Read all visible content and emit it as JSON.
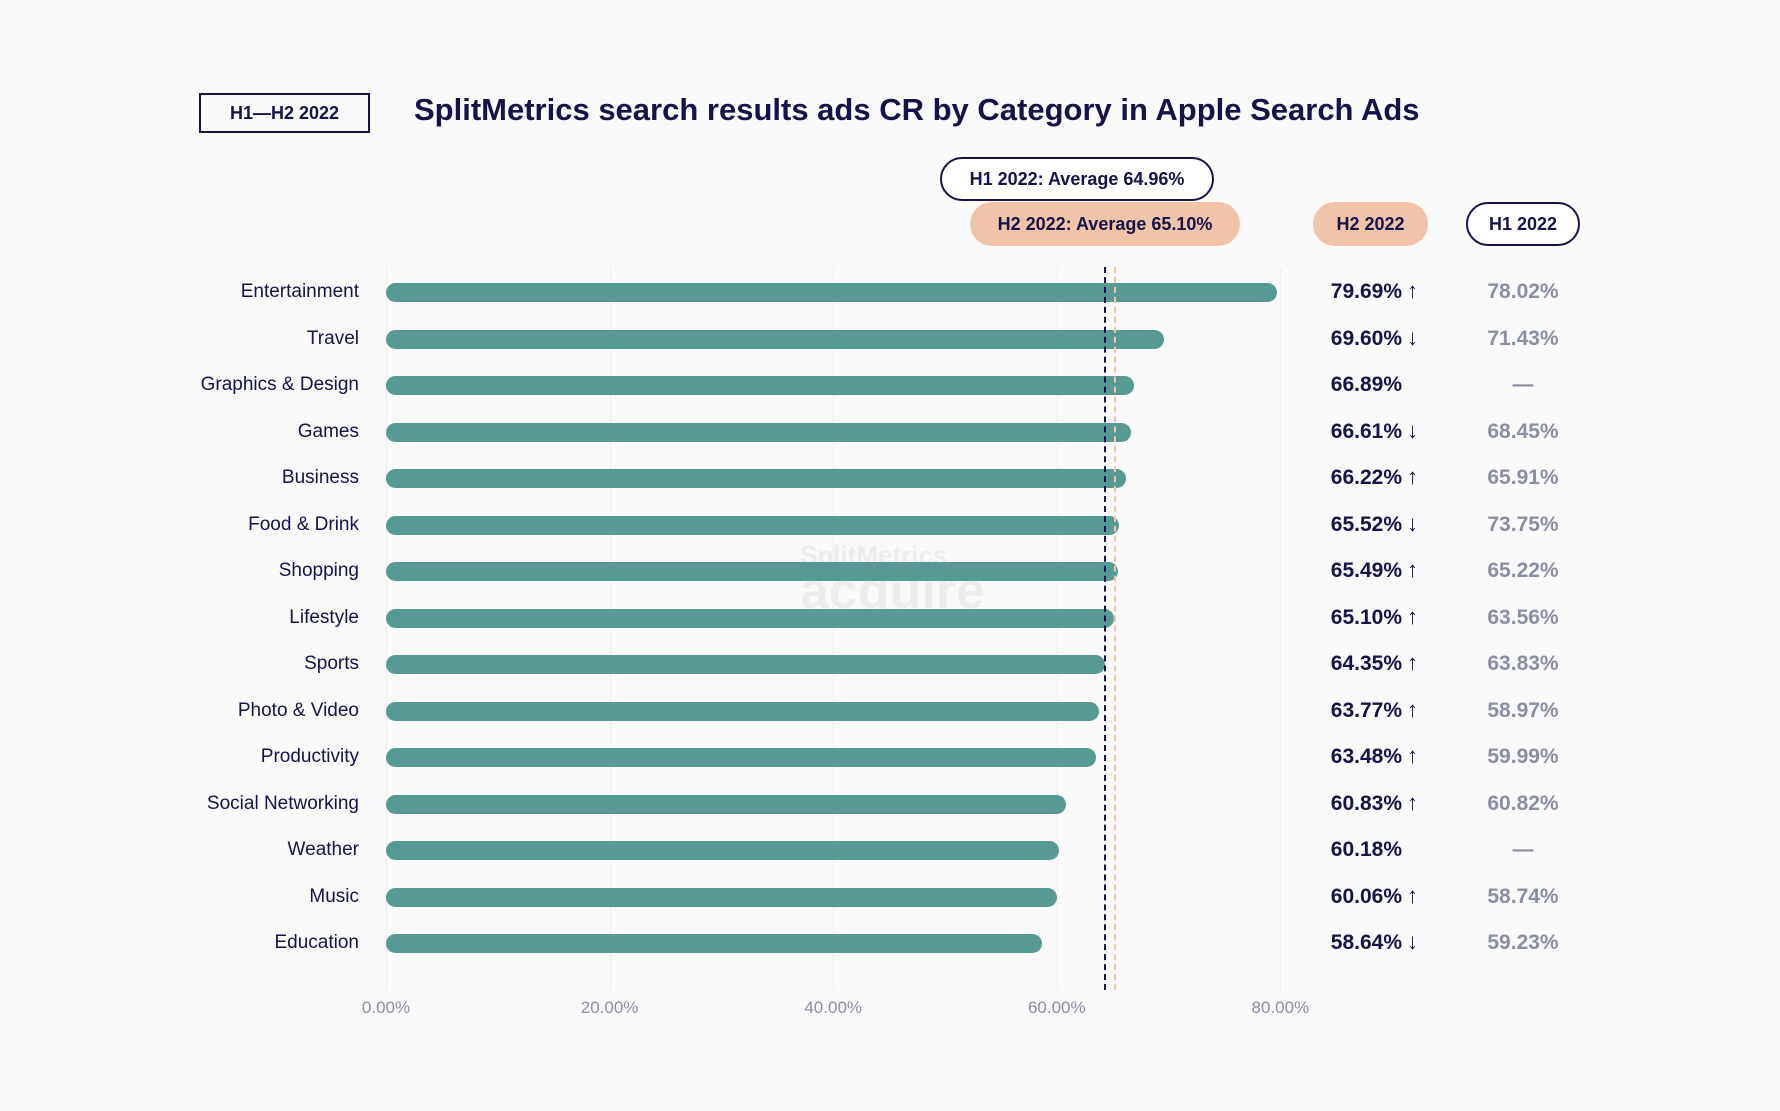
{
  "badge": "H1—H2 2022",
  "watermark": "SplitMetrics acquire",
  "chart_data": {
    "type": "bar",
    "orientation": "horizontal",
    "title": "SplitMetrics search results ads CR by Category in Apple Search Ads",
    "categories": [
      "Entertainment",
      "Travel",
      "Graphics & Design",
      "Games",
      "Business",
      "Food & Drink",
      "Shopping",
      "Lifestyle",
      "Sports",
      "Photo & Video",
      "Productivity",
      "Social Networking",
      "Weather",
      "Music",
      "Education"
    ],
    "series": [
      {
        "name": "H2 2022",
        "values": [
          79.69,
          69.6,
          66.89,
          66.61,
          66.22,
          65.52,
          65.49,
          65.1,
          64.35,
          63.77,
          63.48,
          60.83,
          60.18,
          60.06,
          58.64
        ],
        "labels": [
          "79.69%",
          "69.60%",
          "66.89%",
          "66.61%",
          "66.22%",
          "65.52%",
          "65.49%",
          "65.10%",
          "64.35%",
          "63.77%",
          "63.48%",
          "60.83%",
          "60.18%",
          "60.06%",
          "58.64%"
        ],
        "trend": [
          "up",
          "down",
          "",
          "down",
          "up",
          "down",
          "up",
          "up",
          "up",
          "up",
          "up",
          "up",
          "",
          "up",
          "down"
        ]
      },
      {
        "name": "H1 2022",
        "values": [
          78.02,
          71.43,
          null,
          68.45,
          65.91,
          73.75,
          65.22,
          63.56,
          63.83,
          58.97,
          59.99,
          60.82,
          null,
          58.74,
          59.23
        ],
        "labels": [
          "78.02%",
          "71.43%",
          "—",
          "68.45%",
          "65.91%",
          "73.75%",
          "65.22%",
          "63.56%",
          "63.83%",
          "58.97%",
          "59.99%",
          "60.82%",
          "—",
          "58.74%",
          "59.23%"
        ]
      }
    ],
    "averages": {
      "h1": {
        "value": 64.96,
        "label": "H1 2022: Average 64.96%"
      },
      "h2": {
        "value": 65.1,
        "label": "H2 2022: Average 65.10%"
      }
    },
    "xlim": [
      0,
      80
    ],
    "xticks": [
      "0.00%",
      "20.00%",
      "40.00%",
      "60.00%",
      "80.00%"
    ],
    "grid": true,
    "colors": {
      "bar": "#579a93",
      "h2": "#f0c4a8",
      "h1": "#14134a",
      "text": "#14134a",
      "muted": "#8a8ea3"
    }
  }
}
